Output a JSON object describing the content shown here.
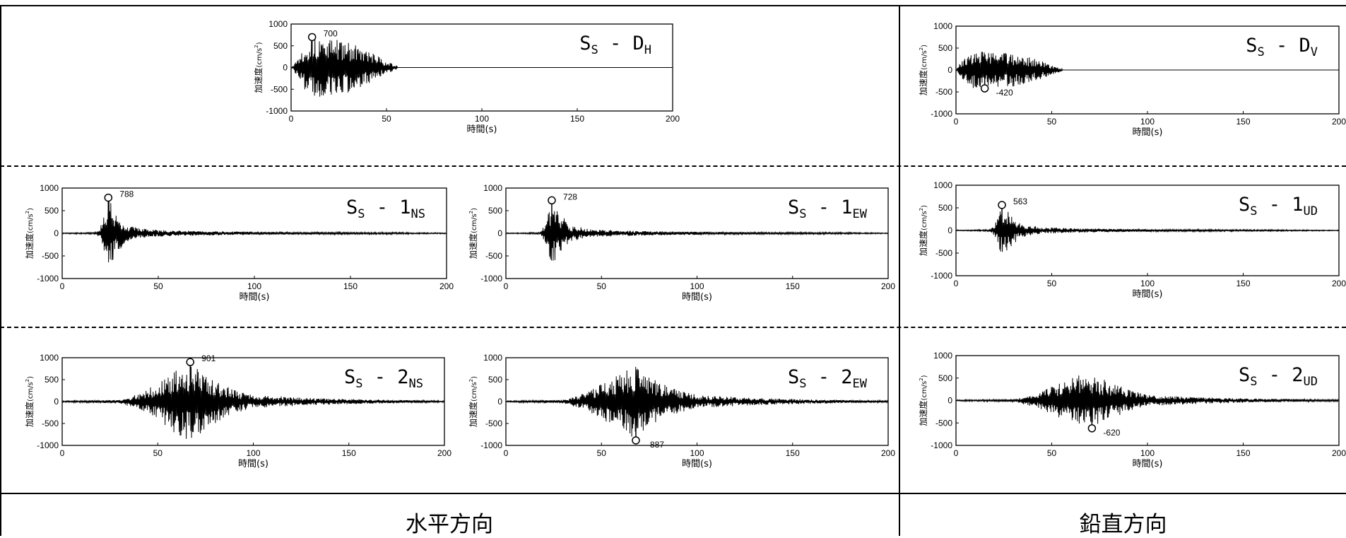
{
  "footer": {
    "horizontal": "水平方向",
    "vertical": "鉛直方向"
  },
  "axis_common": {
    "ylabel_main": "加速度",
    "ylabel_unit": "(cm/s",
    "ylabel_exp": "2",
    "ylabel_close": ")",
    "xlabel": "時間(s)",
    "x_ticks": [
      0,
      50,
      100,
      150,
      200
    ],
    "y_ticks": [
      1000,
      500,
      0,
      -500,
      -1000
    ],
    "xlim": [
      0,
      200
    ],
    "ylim": [
      -1000,
      1000
    ]
  },
  "chart_data": [
    {
      "type": "line",
      "title_main": "S",
      "title_sub1": "S",
      "title_mid": " - D",
      "title_sub2": "H",
      "xlabel": "時間(s)",
      "ylabel": "加速度(cm/s2)",
      "xlim": [
        0,
        200
      ],
      "ylim": [
        -1000,
        1000
      ],
      "envelope": [
        [
          0,
          0
        ],
        [
          3,
          200
        ],
        [
          8,
          600
        ],
        [
          12,
          700
        ],
        [
          25,
          650
        ],
        [
          32,
          550
        ],
        [
          42,
          350
        ],
        [
          50,
          150
        ],
        [
          55,
          50
        ],
        [
          56,
          0
        ],
        [
          200,
          0
        ]
      ],
      "peak": {
        "t": 11,
        "value": 700,
        "label": "700"
      }
    },
    {
      "type": "line",
      "title_main": "S",
      "title_sub1": "S",
      "title_mid": " - D",
      "title_sub2": "V",
      "xlabel": "時間(s)",
      "ylabel": "加速度(cm/s2)",
      "xlim": [
        0,
        200
      ],
      "ylim": [
        -1000,
        1000
      ],
      "envelope": [
        [
          0,
          0
        ],
        [
          2,
          150
        ],
        [
          8,
          420
        ],
        [
          16,
          420
        ],
        [
          28,
          400
        ],
        [
          38,
          300
        ],
        [
          48,
          150
        ],
        [
          55,
          40
        ],
        [
          56,
          0
        ],
        [
          200,
          0
        ]
      ],
      "peak": {
        "t": 15,
        "value": -420,
        "label": "-420"
      }
    },
    {
      "type": "line",
      "title_main": "S",
      "title_sub1": "S",
      "title_mid": " - 1",
      "title_sub2": "NS",
      "xlabel": "時間(s)",
      "ylabel": "加速度(cm/s2)",
      "xlim": [
        0,
        200
      ],
      "ylim": [
        -1000,
        1000
      ],
      "envelope": [
        [
          0,
          10
        ],
        [
          18,
          20
        ],
        [
          21,
          250
        ],
        [
          24,
          788
        ],
        [
          28,
          450
        ],
        [
          34,
          180
        ],
        [
          45,
          80
        ],
        [
          70,
          50
        ],
        [
          110,
          30
        ],
        [
          176,
          20
        ],
        [
          200,
          10
        ]
      ],
      "peak": {
        "t": 24,
        "value": 788,
        "label": "788"
      }
    },
    {
      "type": "line",
      "title_main": "S",
      "title_sub1": "S",
      "title_mid": " - 1",
      "title_sub2": "EW",
      "xlabel": "時間(s)",
      "ylabel": "加速度(cm/s2)",
      "xlim": [
        0,
        200
      ],
      "ylim": [
        -1000,
        1000
      ],
      "envelope": [
        [
          0,
          10
        ],
        [
          18,
          20
        ],
        [
          21,
          250
        ],
        [
          24,
          728
        ],
        [
          28,
          450
        ],
        [
          34,
          180
        ],
        [
          45,
          80
        ],
        [
          70,
          50
        ],
        [
          110,
          30
        ],
        [
          176,
          20
        ],
        [
          200,
          10
        ]
      ],
      "peak": {
        "t": 24,
        "value": 728,
        "label": "728"
      }
    },
    {
      "type": "line",
      "title_main": "S",
      "title_sub1": "S",
      "title_mid": " - 1",
      "title_sub2": "UD",
      "xlabel": "時間(s)",
      "ylabel": "加速度(cm/s2)",
      "xlim": [
        0,
        200
      ],
      "ylim": [
        -1000,
        1000
      ],
      "envelope": [
        [
          0,
          10
        ],
        [
          18,
          20
        ],
        [
          21,
          200
        ],
        [
          24,
          563
        ],
        [
          28,
          380
        ],
        [
          34,
          150
        ],
        [
          45,
          70
        ],
        [
          70,
          40
        ],
        [
          110,
          25
        ],
        [
          176,
          15
        ],
        [
          200,
          10
        ]
      ],
      "peak": {
        "t": 24,
        "value": 563,
        "label": "563"
      }
    },
    {
      "type": "line",
      "title_main": "S",
      "title_sub1": "S",
      "title_mid": " - 2",
      "title_sub2": "NS",
      "xlabel": "時間(s)",
      "ylabel": "加速度(cm/s2)",
      "xlim": [
        0,
        200
      ],
      "ylim": [
        -1000,
        1000
      ],
      "envelope": [
        [
          0,
          15
        ],
        [
          30,
          40
        ],
        [
          42,
          200
        ],
        [
          52,
          500
        ],
        [
          60,
          750
        ],
        [
          67,
          901
        ],
        [
          75,
          650
        ],
        [
          88,
          300
        ],
        [
          100,
          150
        ],
        [
          130,
          80
        ],
        [
          160,
          50
        ],
        [
          200,
          20
        ]
      ],
      "peak": {
        "t": 67,
        "value": 901,
        "label": "901"
      }
    },
    {
      "type": "line",
      "title_main": "S",
      "title_sub1": "S",
      "title_mid": " - 2",
      "title_sub2": "EW",
      "xlabel": "時間(s)",
      "ylabel": "加速度(cm/s2)",
      "xlim": [
        0,
        200
      ],
      "ylim": [
        -1000,
        1000
      ],
      "envelope": [
        [
          0,
          15
        ],
        [
          30,
          40
        ],
        [
          42,
          200
        ],
        [
          52,
          450
        ],
        [
          62,
          700
        ],
        [
          68,
          887
        ],
        [
          75,
          550
        ],
        [
          88,
          300
        ],
        [
          100,
          150
        ],
        [
          130,
          80
        ],
        [
          160,
          50
        ],
        [
          200,
          20
        ]
      ],
      "peak": {
        "t": 68,
        "value": -887,
        "label": "-887"
      }
    },
    {
      "type": "line",
      "title_main": "S",
      "title_sub1": "S",
      "title_mid": " - 2",
      "title_sub2": "UD",
      "xlabel": "時間(s)",
      "ylabel": "加速度(cm/s2)",
      "xlim": [
        0,
        200
      ],
      "ylim": [
        -1000,
        1000
      ],
      "envelope": [
        [
          0,
          15
        ],
        [
          30,
          30
        ],
        [
          42,
          150
        ],
        [
          52,
          350
        ],
        [
          62,
          550
        ],
        [
          70,
          620
        ],
        [
          78,
          450
        ],
        [
          90,
          250
        ],
        [
          100,
          120
        ],
        [
          130,
          70
        ],
        [
          160,
          40
        ],
        [
          200,
          20
        ]
      ],
      "peak": {
        "t": 71,
        "value": -620,
        "label": "-620"
      }
    }
  ]
}
